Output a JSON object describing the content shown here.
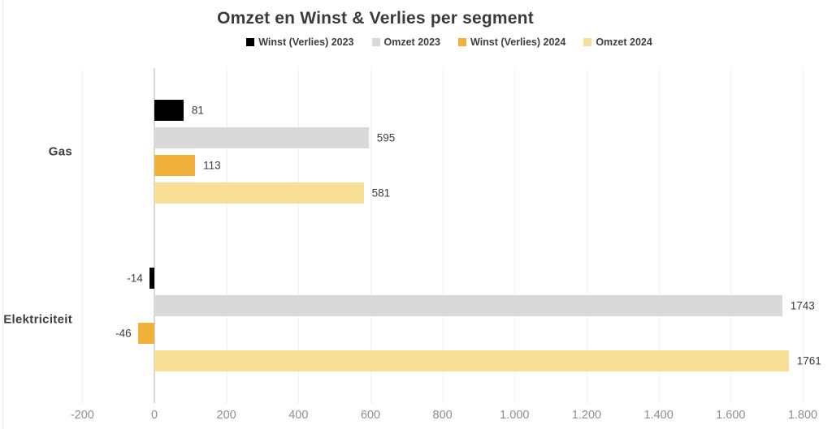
{
  "page": {
    "background": "#ffffff"
  },
  "chart_data": {
    "type": "bar",
    "orientation": "horizontal",
    "title": "Omzet en Winst & Verlies per segment",
    "categories": [
      "Gas",
      "Elektriciteit"
    ],
    "series": [
      {
        "name": "Winst (Verlies) 2023",
        "color": "#000000",
        "values": [
          81,
          -14
        ]
      },
      {
        "name": "Omzet 2023",
        "color": "#D9D9D9",
        "values": [
          595,
          1743
        ]
      },
      {
        "name": "Winst (Verlies) 2024",
        "color": "#F1B13B",
        "values": [
          113,
          -46
        ]
      },
      {
        "name": "Omzet 2024",
        "color": "#F9DE96",
        "values": [
          581,
          1761
        ]
      }
    ],
    "xlabel": "",
    "ylabel": "",
    "xlim": [
      -200,
      1800
    ],
    "x_ticks": [
      {
        "value": -200,
        "label": "-200"
      },
      {
        "value": 0,
        "label": "0"
      },
      {
        "value": 200,
        "label": "200"
      },
      {
        "value": 400,
        "label": "400"
      },
      {
        "value": 600,
        "label": "600"
      },
      {
        "value": 800,
        "label": "800"
      },
      {
        "value": 1000,
        "label": "1.000"
      },
      {
        "value": 1200,
        "label": "1.200"
      },
      {
        "value": 1400,
        "label": "1.400"
      },
      {
        "value": 1600,
        "label": "1.600"
      },
      {
        "value": 1800,
        "label": "1.800"
      }
    ],
    "grid": "vertical-dotted",
    "zero_line": "solid",
    "legend_position": "top-center",
    "bar_value_labels": true,
    "colors": {
      "title_text": "#3A3A3A",
      "label_text": "#3E3E3E",
      "tick_text": "#8F8F8F",
      "gridline": "#E2E2E2",
      "zero_line": "#D9D9D9"
    }
  }
}
